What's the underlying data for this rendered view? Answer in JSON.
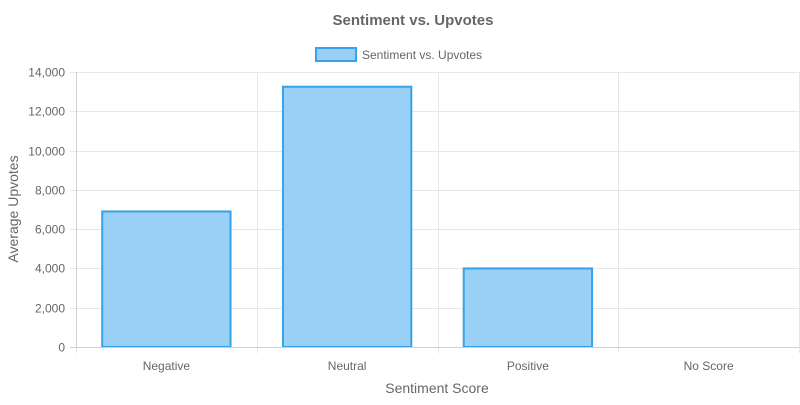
{
  "chart_data": {
    "type": "bar",
    "title": "Sentiment vs. Upvotes",
    "categories": [
      "Negative",
      "Neutral",
      "Positive",
      "No Score"
    ],
    "series": [
      {
        "name": "Sentiment vs. Upvotes",
        "values": [
          6900,
          13250,
          4000,
          0
        ]
      }
    ],
    "xlabel": "Sentiment Score",
    "ylabel": "Average Upvotes",
    "ylim": [
      0,
      14000
    ],
    "yticks": [
      0,
      2000,
      4000,
      6000,
      8000,
      10000,
      12000,
      14000
    ],
    "ytick_labels": [
      "0",
      "2,000",
      "4,000",
      "6,000",
      "8,000",
      "10,000",
      "12,000",
      "14,000"
    ],
    "grid": true,
    "legend_position": "top",
    "colors": {
      "bar_fill": "#9ad0f5",
      "bar_stroke": "#36a2eb",
      "text": "#666666",
      "grid": "#e6e6e6"
    }
  }
}
